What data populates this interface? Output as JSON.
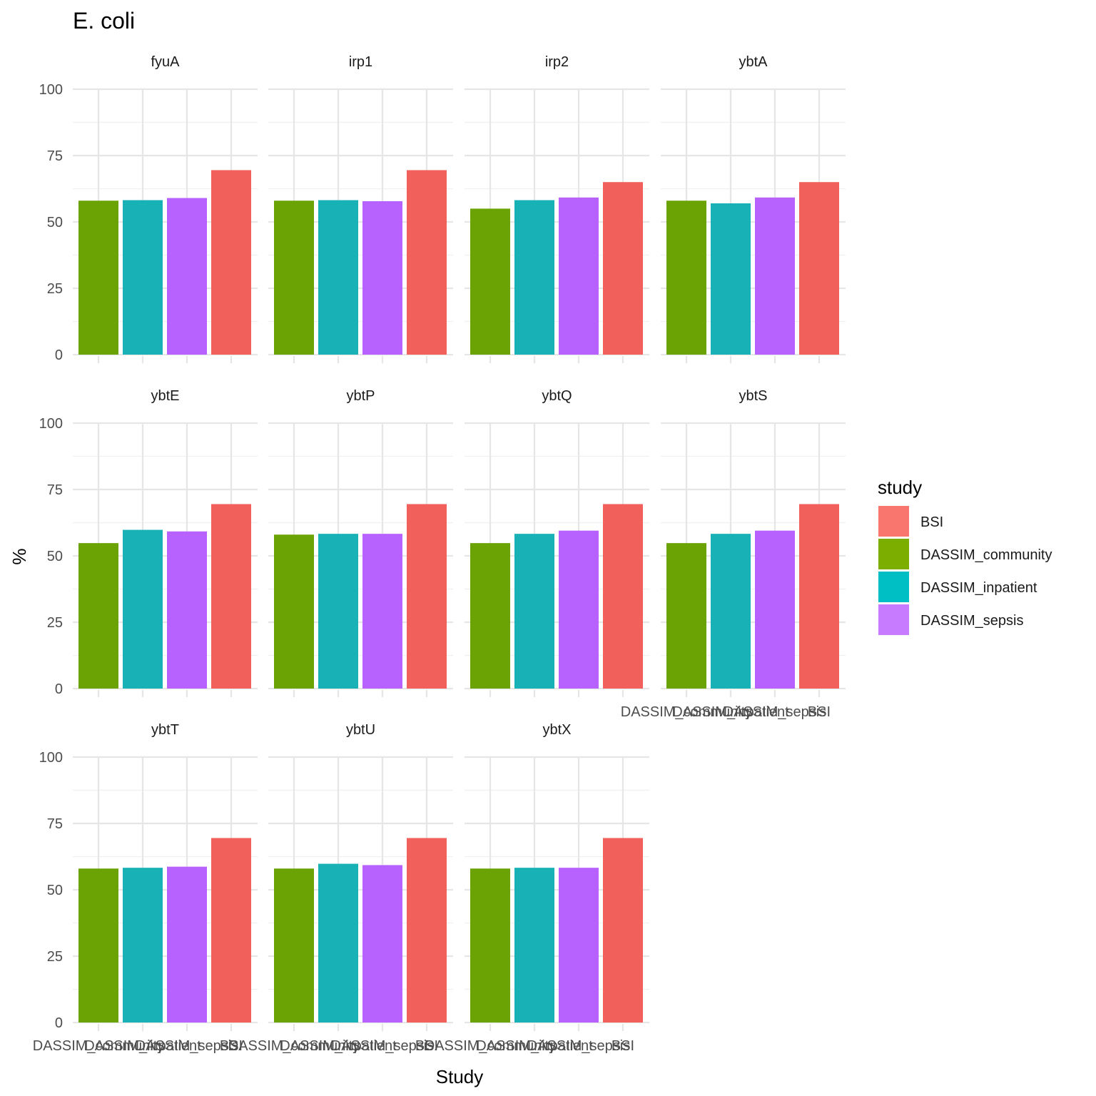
{
  "chart_data": {
    "type": "bar",
    "title": "E. coli",
    "xlabel": "Study",
    "ylabel": "%",
    "ylim": [
      0,
      100
    ],
    "yticks": [
      0,
      25,
      50,
      75,
      100
    ],
    "categories": [
      "DASSIM_community",
      "DASSIM_inpatient",
      "DASSIM_sepsis",
      "BSI"
    ],
    "grid": true,
    "facets": [
      {
        "name": "fyuA",
        "values": [
          58,
          58.2,
          59,
          69.5
        ]
      },
      {
        "name": "irp1",
        "values": [
          58,
          58.2,
          57.8,
          69.5
        ]
      },
      {
        "name": "irp2",
        "values": [
          55,
          58.2,
          59.2,
          65
        ]
      },
      {
        "name": "ybtA",
        "values": [
          58,
          57,
          59.2,
          65
        ]
      },
      {
        "name": "ybtE",
        "values": [
          54.8,
          59.8,
          59.2,
          69.5
        ]
      },
      {
        "name": "ybtP",
        "values": [
          58,
          58.3,
          58.3,
          69.5
        ]
      },
      {
        "name": "ybtQ",
        "values": [
          54.8,
          58.3,
          59.5,
          69.5
        ]
      },
      {
        "name": "ybtS",
        "values": [
          54.8,
          58.3,
          59.5,
          69.5
        ]
      },
      {
        "name": "ybtT",
        "values": [
          58,
          58.3,
          58.7,
          69.5
        ]
      },
      {
        "name": "ybtU",
        "values": [
          58,
          59.8,
          59.3,
          69.5
        ]
      },
      {
        "name": "ybtX",
        "values": [
          58,
          58.3,
          58.3,
          69.5
        ]
      }
    ],
    "legend": {
      "title": "study",
      "position": "right",
      "entries": [
        {
          "label": "BSI",
          "color": "#F8766D"
        },
        {
          "label": "DASSIM_community",
          "color": "#7CAE00"
        },
        {
          "label": "DASSIM_inpatient",
          "color": "#00BFC4"
        },
        {
          "label": "DASSIM_sepsis",
          "color": "#C77CFF"
        }
      ]
    },
    "colors": {
      "DASSIM_community": "#6BA304",
      "DASSIM_inpatient": "#18B2B6",
      "DASSIM_sepsis": "#B762FE",
      "BSI": "#F2605C"
    }
  }
}
